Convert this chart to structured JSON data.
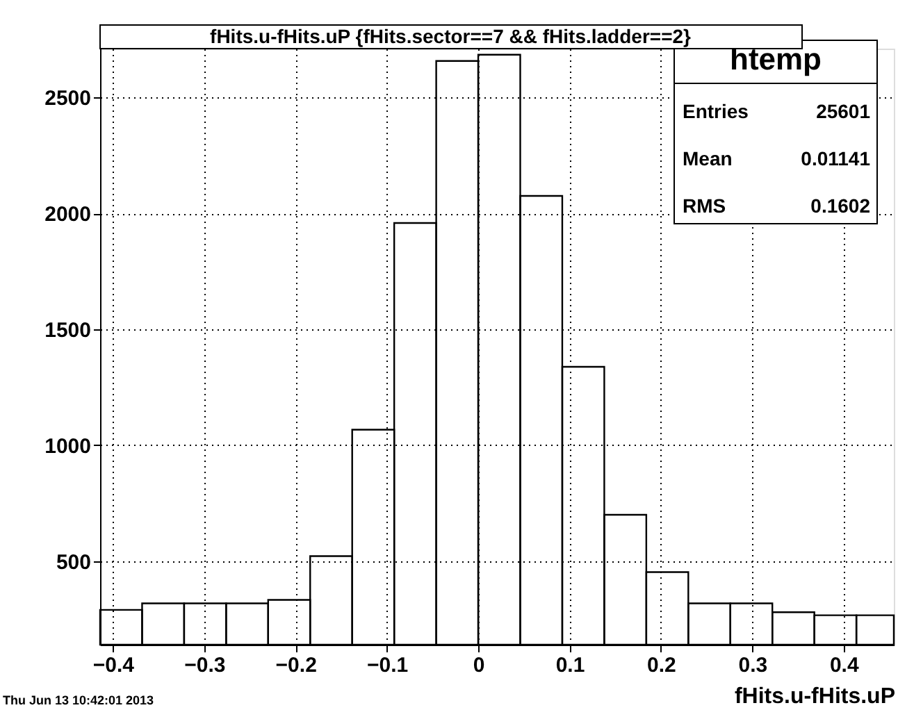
{
  "chart_data": {
    "type": "histogram",
    "title": "fHits.u-fHits.uP {fHits.sector==7 && fHits.ladder==2}",
    "xlabel": "fHits.u-fHits.uP",
    "bins": [
      -0.414,
      -0.368,
      -0.322,
      -0.276,
      -0.23,
      -0.184,
      -0.138,
      -0.092,
      -0.046,
      0,
      0.046,
      0.092,
      0.138,
      0.184,
      0.23,
      0.276,
      0.322,
      0.368,
      0.414,
      0.455
    ],
    "values": [
      290,
      318,
      318,
      318,
      333,
      522,
      1067,
      1958,
      2657,
      2684,
      2075,
      1338,
      700,
      453,
      318,
      318,
      280,
      267,
      267
    ],
    "color": "#000000",
    "xlim": [
      -0.414,
      0.455
    ],
    "ylim": [
      140,
      2710
    ],
    "xticks": [
      -0.4,
      -0.3,
      -0.2,
      -0.1,
      0,
      0.1,
      0.2,
      0.3,
      0.4
    ],
    "yticks": [
      500,
      1000,
      1500,
      2000,
      2500
    ],
    "grid": true,
    "annotations": [
      "htemp",
      "Entries",
      "25601",
      "Mean",
      "0.01141",
      "RMS",
      "0.1602",
      "Thu Jun 13 10:42:01 2013"
    ]
  }
}
